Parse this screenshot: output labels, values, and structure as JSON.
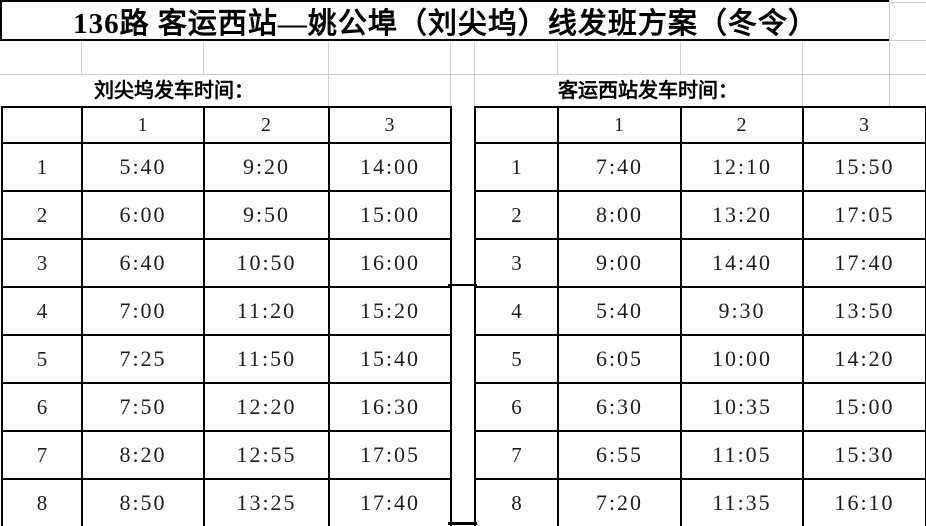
{
  "title": "136路 客运西站—姚公埠（刘尖坞）线发班方案（冬令）",
  "tables": [
    {
      "section_label": "刘尖坞发车时间：",
      "corner": "",
      "col_headers": [
        "1",
        "2",
        "3"
      ],
      "rows": [
        {
          "label": "1",
          "times": [
            "5:40",
            "9:20",
            "14:00"
          ]
        },
        {
          "label": "2",
          "times": [
            "6:00",
            "9:50",
            "15:00"
          ]
        },
        {
          "label": "3",
          "times": [
            "6:40",
            "10:50",
            "16:00"
          ]
        },
        {
          "label": "4",
          "times": [
            "7:00",
            "11:20",
            "15:20"
          ]
        },
        {
          "label": "5",
          "times": [
            "7:25",
            "11:50",
            "15:40"
          ]
        },
        {
          "label": "6",
          "times": [
            "7:50",
            "12:20",
            "16:30"
          ]
        },
        {
          "label": "7",
          "times": [
            "8:20",
            "12:55",
            "17:05"
          ]
        },
        {
          "label": "8",
          "times": [
            "8:50",
            "13:25",
            "17:40"
          ]
        }
      ]
    },
    {
      "section_label": "客运西站发车时间：",
      "corner": "",
      "col_headers": [
        "1",
        "2",
        "3"
      ],
      "rows": [
        {
          "label": "1",
          "times": [
            "7:40",
            "12:10",
            "15:50"
          ]
        },
        {
          "label": "2",
          "times": [
            "8:00",
            "13:20",
            "17:05"
          ]
        },
        {
          "label": "3",
          "times": [
            "9:00",
            "14:40",
            "17:40"
          ]
        },
        {
          "label": "4",
          "times": [
            "5:40",
            "9:30",
            "13:50"
          ]
        },
        {
          "label": "5",
          "times": [
            "6:05",
            "10:00",
            "14:20"
          ]
        },
        {
          "label": "6",
          "times": [
            "6:30",
            "10:35",
            "15:00"
          ]
        },
        {
          "label": "7",
          "times": [
            "6:55",
            "11:05",
            "15:30"
          ]
        },
        {
          "label": "8",
          "times": [
            "7:20",
            "11:35",
            "16:10"
          ]
        }
      ]
    }
  ],
  "colors": {
    "border": "#000000",
    "gridline": "#c9cfd8",
    "text": "#1d1d1d",
    "background": "#ffffff"
  }
}
